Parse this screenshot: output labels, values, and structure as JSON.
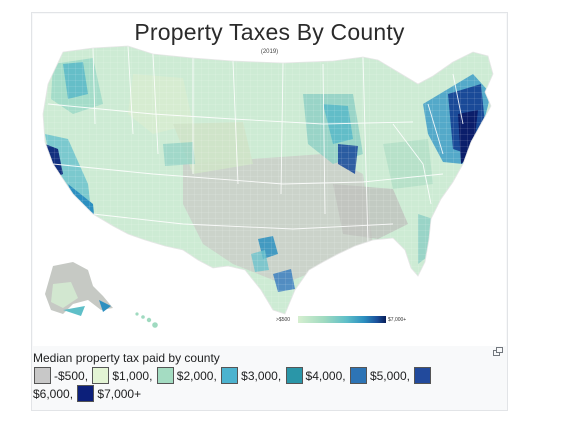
{
  "map": {
    "title": "Property Taxes By County",
    "subtitle": "(2019)",
    "scale_low_label": ">$500",
    "scale_high_label": "$7,000+",
    "scale_colors": [
      "#d6efd0",
      "#9fdac0",
      "#5fbfc8",
      "#2c8fc0",
      "#1a4f9a",
      "#081d58"
    ]
  },
  "caption": {
    "title": "Median property tax paid by county",
    "legend_row1": [
      {
        "label": "-$500,",
        "color": "#c8c8c8"
      },
      {
        "label": "$1,000,",
        "color": "#e3f4d4"
      },
      {
        "label": "$2,000,",
        "color": "#a4dcc2"
      },
      {
        "label": "$3,000,",
        "color": "#4cb3cf"
      },
      {
        "label": "$4,000,",
        "color": "#2a96a8"
      },
      {
        "label": "$5,000,",
        "color": "#2d74b5"
      },
      {
        "label": "",
        "color": "#224a9c"
      }
    ],
    "legend_row2": [
      {
        "label": "$6,000,",
        "color": ""
      },
      {
        "label": "$7,000+",
        "color": "#0c1f7a"
      }
    ]
  },
  "icons": {
    "enlarge": "enlarge-icon"
  }
}
